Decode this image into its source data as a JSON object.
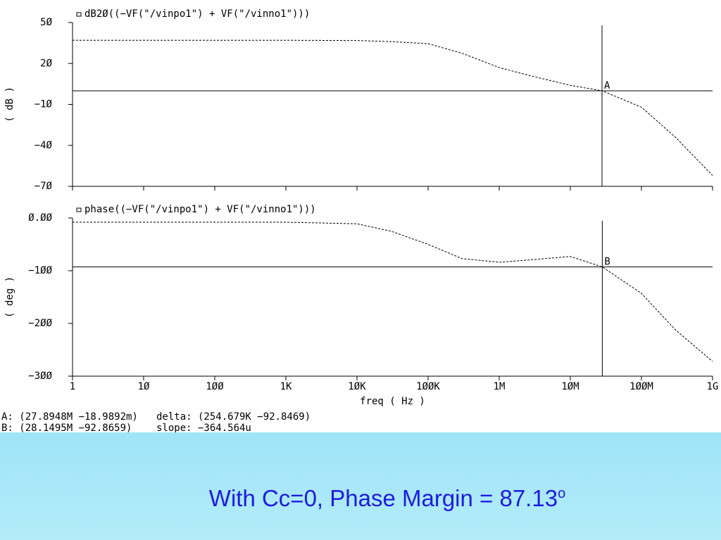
{
  "chart_data": [
    {
      "type": "line",
      "title": "dB2Ø((−VF(\"/vinpo1\") + VF(\"/vinno1\")))",
      "ylabel": "( dB )",
      "color": "#000000",
      "log_x": true,
      "x": [
        1,
        10,
        100,
        1000,
        10000,
        30000,
        100000,
        300000,
        1000000,
        3000000,
        10000000,
        27894800,
        100000000,
        300000000,
        1000000000
      ],
      "values": [
        37,
        37,
        37,
        37,
        36.8,
        36,
        34.5,
        27.5,
        17,
        10.5,
        4,
        0,
        -12,
        -34,
        -62
      ],
      "xlim": [
        1,
        1000000000
      ],
      "ylim": [
        -70,
        50
      ],
      "yticks": [
        {
          "value": 50,
          "label": "5Ø"
        },
        {
          "value": 20,
          "label": "2Ø"
        },
        {
          "value": -10,
          "label": "−1Ø"
        },
        {
          "value": -40,
          "label": "−4Ø"
        },
        {
          "value": -70,
          "label": "−7Ø"
        }
      ],
      "cursor": {
        "label": "A",
        "x": 27894800,
        "y": -0.0189892
      }
    },
    {
      "type": "line",
      "title": "phase((−VF(\"/vinpo1\") + VF(\"/vinno1\")))",
      "ylabel": "( deg )",
      "xlabel": "freq ( Hz )",
      "color": "#000000",
      "log_x": true,
      "x": [
        1,
        10,
        100,
        1000,
        10000,
        30000,
        100000,
        300000,
        1000000,
        3000000,
        10000000,
        28149500,
        100000000,
        300000000,
        1000000000
      ],
      "values": [
        -8,
        -8,
        -8,
        -8,
        -11,
        -25,
        -50,
        -77,
        -84,
        -79,
        -73,
        -92.8659,
        -143,
        -212,
        -272
      ],
      "xlim": [
        1,
        1000000000
      ],
      "ylim": [
        -300,
        0
      ],
      "xticks": [
        {
          "value": 1,
          "label": "1"
        },
        {
          "value": 10,
          "label": "1Ø"
        },
        {
          "value": 100,
          "label": "1ØØ"
        },
        {
          "value": 1000,
          "label": "1K"
        },
        {
          "value": 10000,
          "label": "1ØK"
        },
        {
          "value": 100000,
          "label": "1ØØK"
        },
        {
          "value": 1000000,
          "label": "1M"
        },
        {
          "value": 10000000,
          "label": "1ØM"
        },
        {
          "value": 100000000,
          "label": "1ØØM"
        },
        {
          "value": 1000000000,
          "label": "1G"
        }
      ],
      "yticks": [
        {
          "value": 0,
          "label": "Ø.ØØ"
        },
        {
          "value": -100,
          "label": "−1ØØ"
        },
        {
          "value": -200,
          "label": "−2ØØ"
        },
        {
          "value": -300,
          "label": "−3ØØ"
        }
      ],
      "cursor": {
        "label": "B",
        "x": 28149500,
        "y": -92.8659
      }
    }
  ],
  "cursor_readouts": {
    "a": "A: (27.8948M −18.9892m)",
    "delta": "delta: (254.679K −92.8469)",
    "b": "B: (28.1495M −92.8659)",
    "slope": "slope: −364.564u"
  },
  "caption": {
    "text": "With Cc=0, Phase Margin = 87.13",
    "superscript": "o"
  }
}
